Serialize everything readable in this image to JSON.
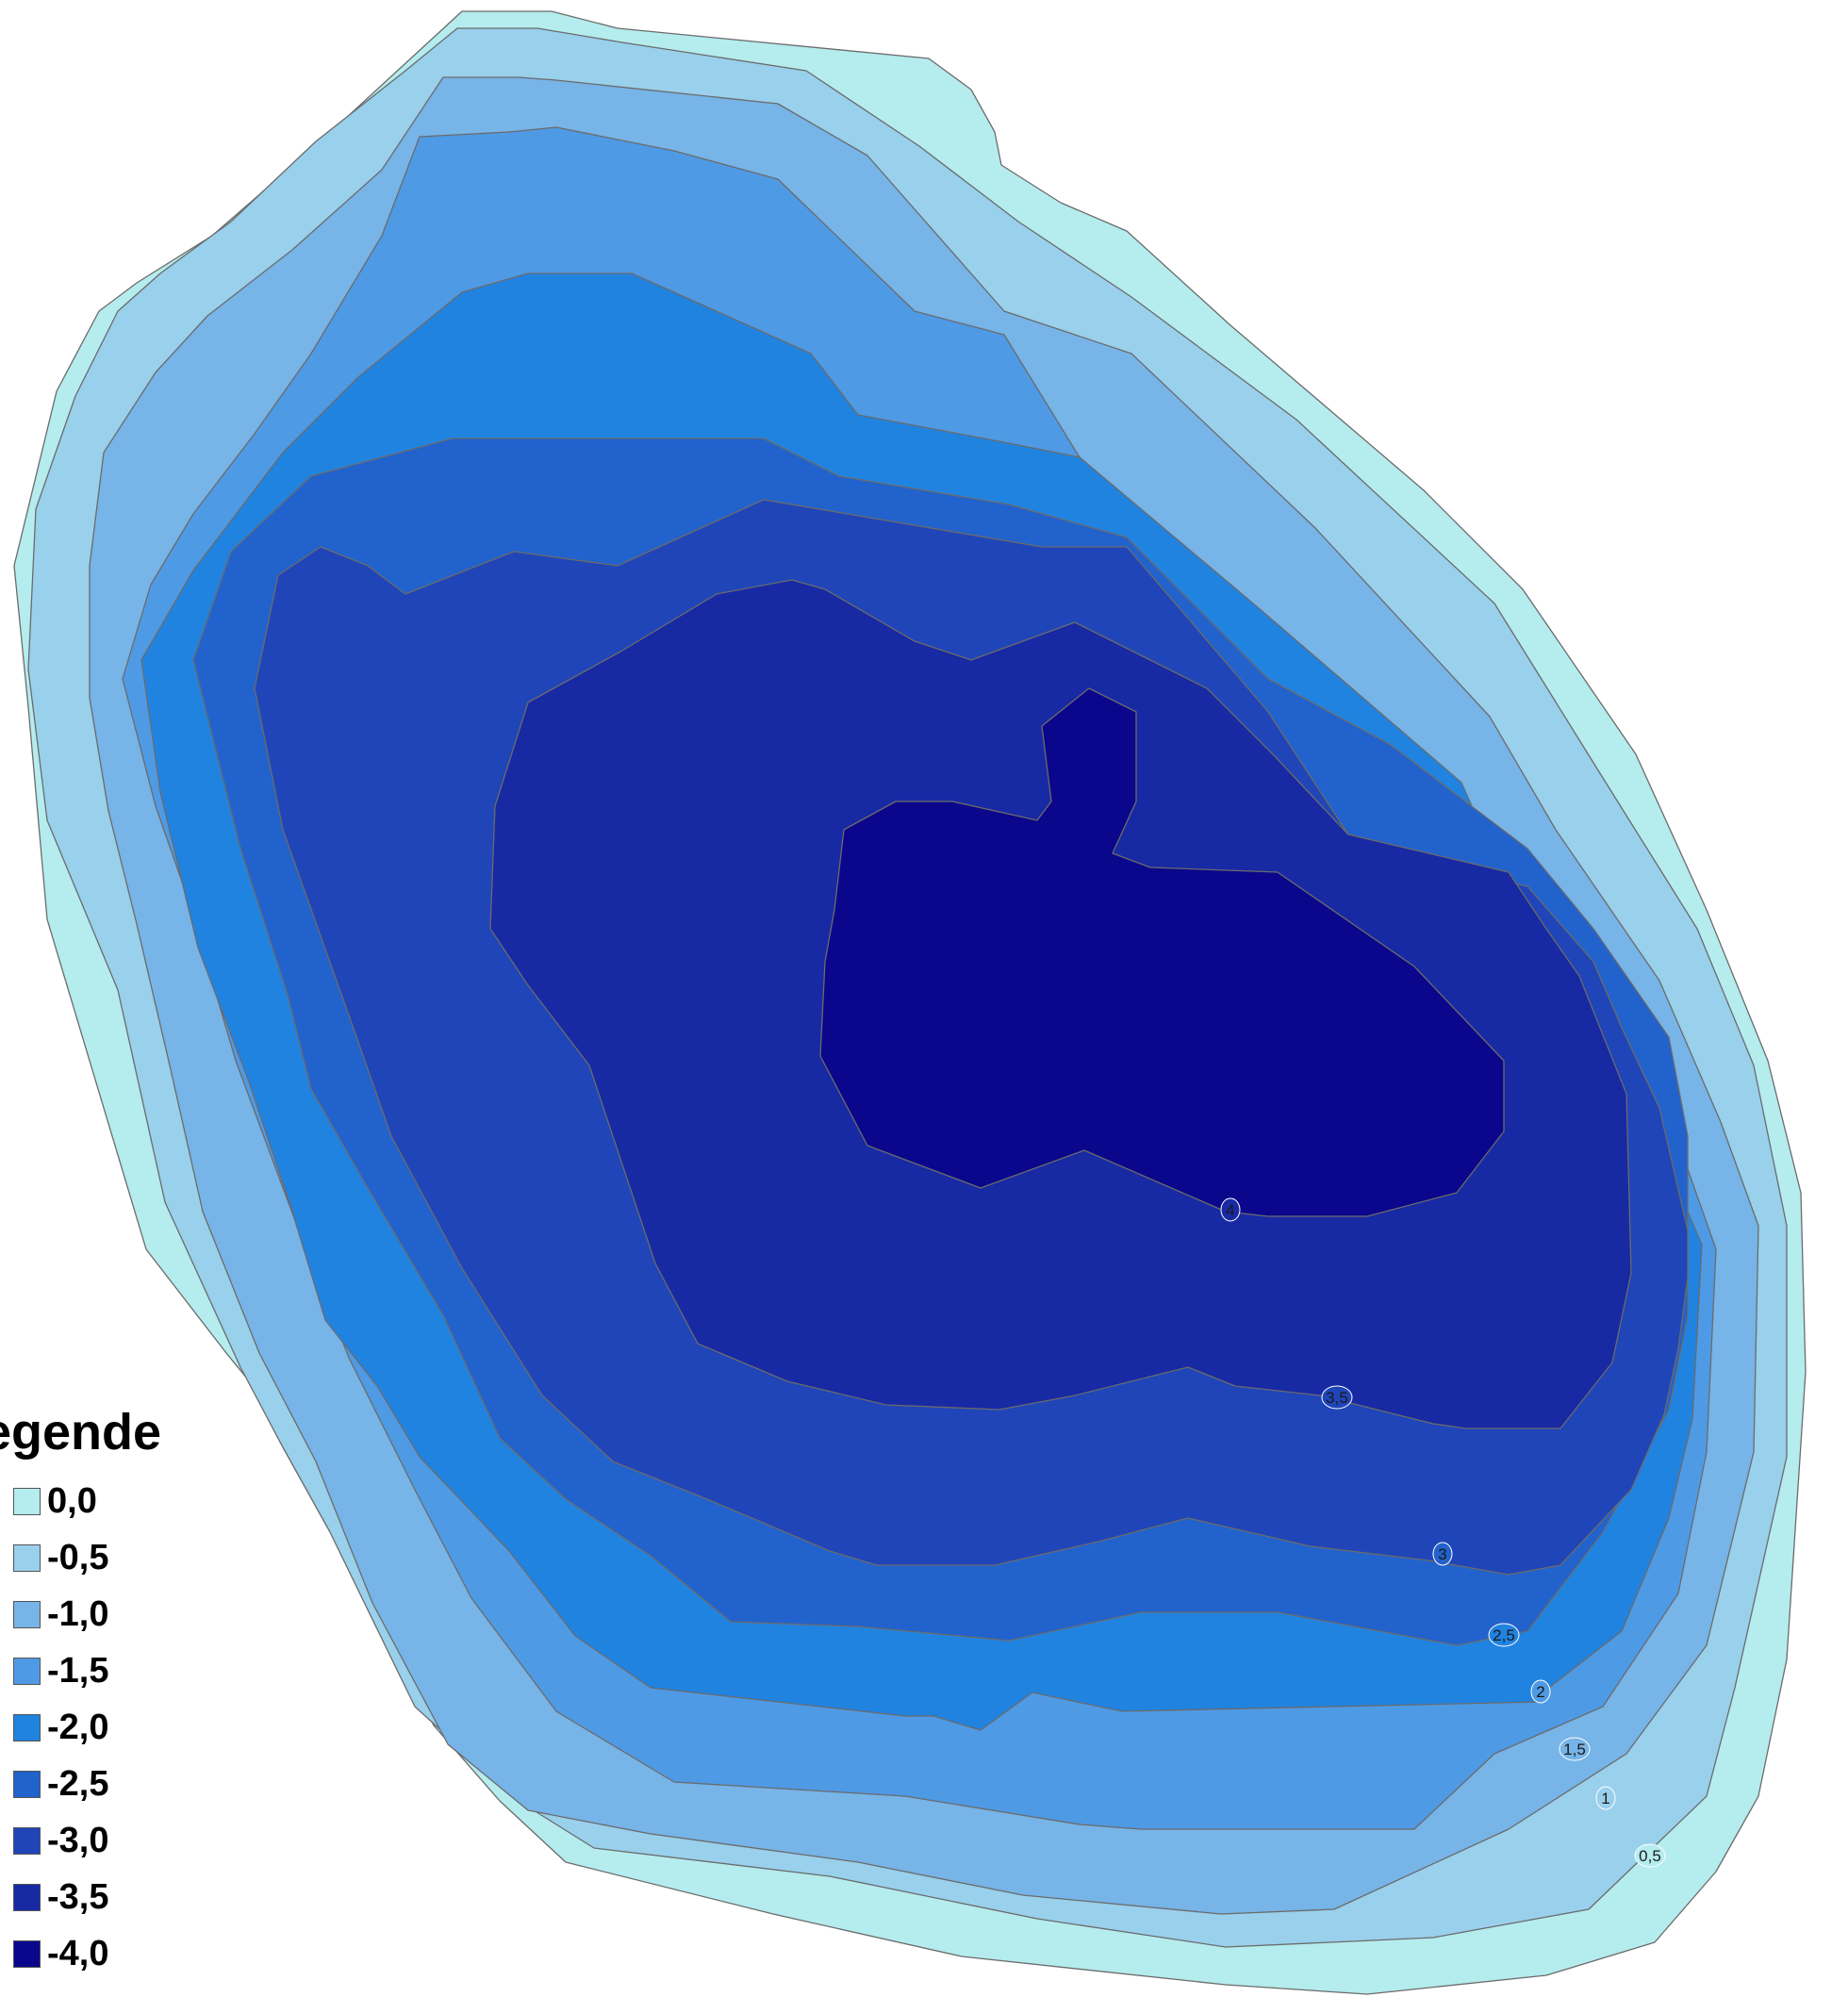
{
  "legend": {
    "title": "egende",
    "items": [
      {
        "label": "0,0",
        "color": "#b5ecee"
      },
      {
        "label": "-0,5",
        "color": "#99d0ec"
      },
      {
        "label": "-1,0",
        "color": "#77b4e7"
      },
      {
        "label": "-1,5",
        "color": "#4f9ae5"
      },
      {
        "label": "-2,0",
        "color": "#2183e0"
      },
      {
        "label": "-2,5",
        "color": "#2262cc"
      },
      {
        "label": "-3,0",
        "color": "#1f45b8"
      },
      {
        "label": "-3,5",
        "color": "#1829a4"
      },
      {
        "label": "-4,0",
        "color": "#0a078c"
      }
    ]
  },
  "contour_labels": [
    "0,5",
    "1",
    "1,5",
    "2",
    "2,5",
    "3",
    "3,5",
    "4"
  ],
  "colors": {
    "contour_line": "#6b6b6b"
  }
}
